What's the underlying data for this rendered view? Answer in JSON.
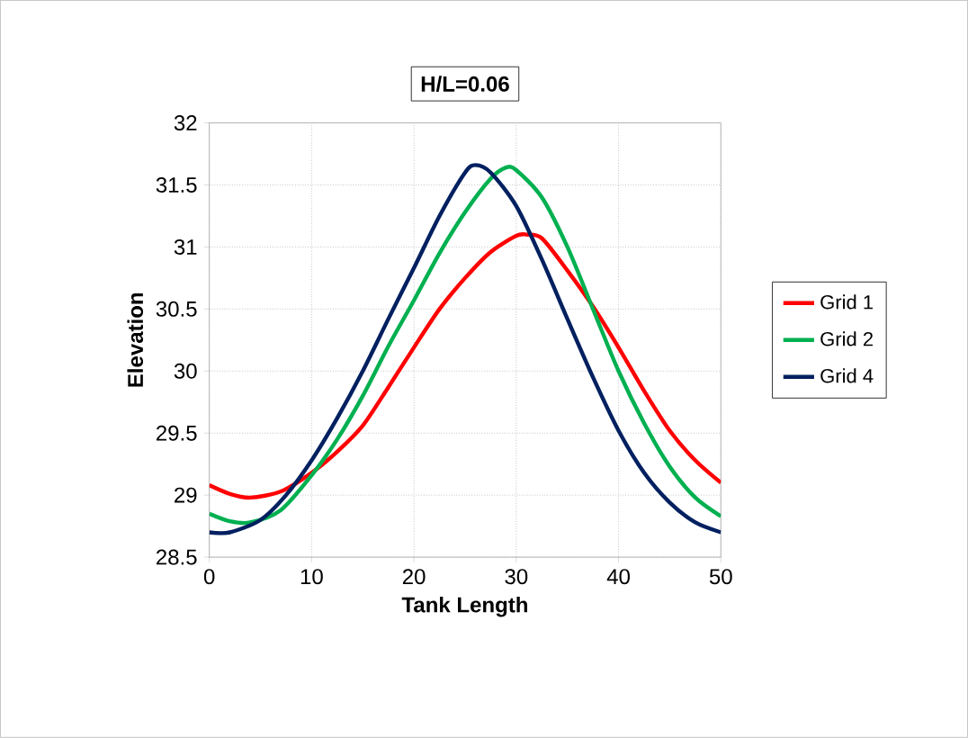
{
  "chart_data": {
    "type": "line",
    "title": "H/L=0.06",
    "xlabel": "Tank Length",
    "ylabel": "Elevation",
    "xlim": [
      0,
      50
    ],
    "ylim": [
      28.5,
      32
    ],
    "xticks": [
      0,
      10,
      20,
      30,
      40,
      50
    ],
    "yticks": [
      28.5,
      29,
      29.5,
      30,
      30.5,
      31,
      31.5,
      32
    ],
    "grid": true,
    "legend": "right",
    "line_style": "solid",
    "marker": "none",
    "series": [
      {
        "name": "Grid 1",
        "color": "#ff0000",
        "x": [
          0,
          2,
          4,
          7,
          10,
          12.5,
          15,
          17.5,
          20,
          22.5,
          25,
          27.5,
          30,
          31,
          32.5,
          35,
          37.5,
          40,
          42.5,
          45,
          47.5,
          50
        ],
        "values": [
          29.08,
          29.01,
          28.98,
          29.03,
          29.18,
          29.35,
          29.56,
          29.87,
          30.19,
          30.5,
          30.75,
          30.96,
          31.09,
          31.1,
          31.07,
          30.81,
          30.52,
          30.19,
          29.84,
          29.52,
          29.28,
          29.1
        ]
      },
      {
        "name": "Grid 2",
        "color": "#00b050",
        "x": [
          0,
          2,
          4,
          7,
          10,
          12.5,
          15,
          17.5,
          20,
          22.5,
          25,
          27.5,
          29,
          30,
          32.5,
          35,
          37.5,
          40,
          42.5,
          45,
          47.5,
          50
        ],
        "values": [
          28.85,
          28.79,
          28.78,
          28.88,
          29.16,
          29.45,
          29.8,
          30.2,
          30.57,
          30.95,
          31.28,
          31.55,
          31.64,
          31.62,
          31.4,
          31.0,
          30.5,
          30.0,
          29.58,
          29.23,
          28.98,
          28.83
        ]
      },
      {
        "name": "Grid 4",
        "color": "#002060",
        "x": [
          0,
          2,
          5,
          7.5,
          10,
          12.5,
          15,
          17.5,
          20,
          22.5,
          25,
          26,
          27.5,
          30,
          32.5,
          35,
          37.5,
          40,
          42.5,
          45,
          47.5,
          50
        ],
        "values": [
          28.7,
          28.7,
          28.8,
          29.0,
          29.28,
          29.62,
          30.0,
          30.42,
          30.83,
          31.25,
          31.6,
          31.66,
          31.6,
          31.33,
          30.9,
          30.42,
          29.95,
          29.52,
          29.18,
          28.94,
          28.78,
          28.7
        ]
      }
    ]
  }
}
